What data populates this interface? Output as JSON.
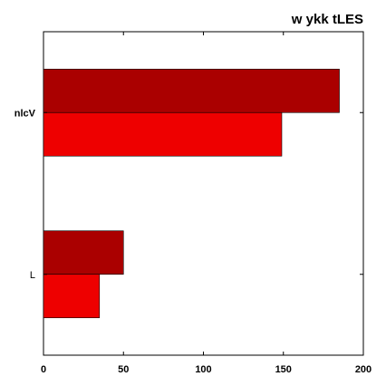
{
  "chart_data": {
    "type": "bar",
    "orientation": "horizontal",
    "title": "w ykk tLES",
    "xlabel": "",
    "ylabel": "",
    "categories": [
      "nlcV",
      "L"
    ],
    "series": [
      {
        "values": [
          185,
          50
        ],
        "color": "#aa0000"
      },
      {
        "values": [
          149,
          35
        ],
        "color": "#ee0000"
      }
    ],
    "xlim": [
      0,
      200
    ],
    "xticks": [
      0,
      50,
      100,
      150,
      200
    ],
    "grid": false,
    "legend": "none"
  }
}
